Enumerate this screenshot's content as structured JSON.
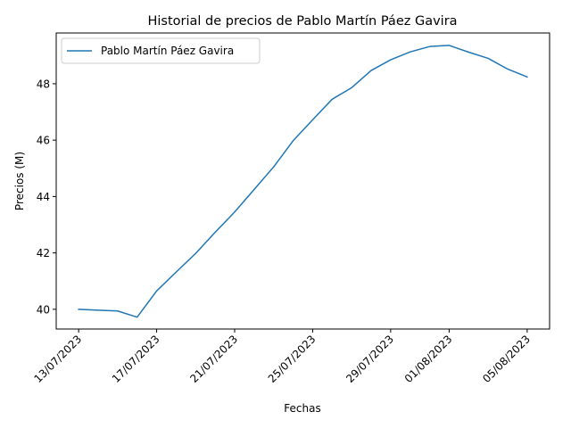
{
  "chart_data": {
    "type": "line",
    "title": "Historial de precios de Pablo Martín Páez Gavira",
    "xlabel": "Fechas",
    "ylabel": "Precios (M)",
    "x": [
      "2023-07-13",
      "2023-07-14",
      "2023-07-15",
      "2023-07-16",
      "2023-07-17",
      "2023-07-18",
      "2023-07-19",
      "2023-07-20",
      "2023-07-21",
      "2023-07-22",
      "2023-07-23",
      "2023-07-24",
      "2023-07-25",
      "2023-07-26",
      "2023-07-27",
      "2023-07-28",
      "2023-07-29",
      "2023-07-30",
      "2023-07-31",
      "2023-08-01",
      "2023-08-02",
      "2023-08-03",
      "2023-08-04",
      "2023-08-05"
    ],
    "x_tick_labels": [
      "13/07/2023",
      "17/07/2023",
      "21/07/2023",
      "25/07/2023",
      "29/07/2023",
      "01/08/2023",
      "05/08/2023"
    ],
    "x_tick_dates": [
      "2023-07-13",
      "2023-07-17",
      "2023-07-21",
      "2023-07-25",
      "2023-07-29",
      "2023-08-01",
      "2023-08-05"
    ],
    "y_ticks": [
      40,
      42,
      44,
      46,
      48
    ],
    "ylim": [
      39.3,
      49.8
    ],
    "series": [
      {
        "name": "Pablo Martín Páez Gavira",
        "color": "#1f77b4",
        "values": [
          40.0,
          39.97,
          39.94,
          39.72,
          40.65,
          41.32,
          41.98,
          42.73,
          43.45,
          44.25,
          45.05,
          45.98,
          46.72,
          47.45,
          47.86,
          48.47,
          48.85,
          49.13,
          49.32,
          49.36,
          49.12,
          48.9,
          48.52,
          48.24
        ]
      }
    ],
    "legend_position": "top-left",
    "grid": false
  }
}
